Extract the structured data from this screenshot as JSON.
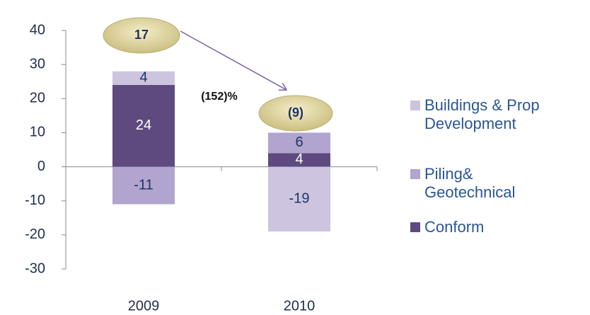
{
  "chart_data": {
    "type": "stacked_bar",
    "categories": [
      "2009",
      "2010"
    ],
    "series": [
      {
        "name": "Buildings & Prop Development",
        "color": "#cdc4df",
        "values": [
          4,
          -19
        ]
      },
      {
        "name": "Piling& Geotechnical",
        "color": "#b1a4cf",
        "values": [
          -11,
          6
        ]
      },
      {
        "name": "Conform",
        "color": "#5e4a7e",
        "values": [
          24,
          4
        ]
      }
    ],
    "ylim": [
      -30,
      40
    ],
    "yticks": [
      -30,
      -20,
      -10,
      0,
      10,
      20,
      30,
      40
    ],
    "annotations": [
      "17",
      "(9)",
      "(152)%"
    ]
  }
}
